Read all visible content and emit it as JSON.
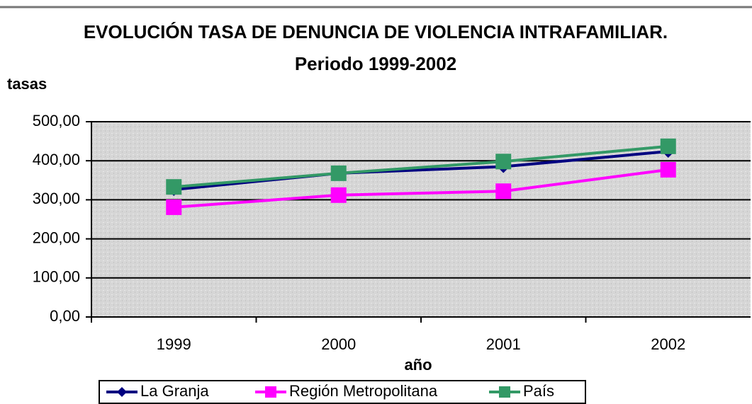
{
  "chart_data": {
    "type": "line",
    "title": "EVOLUCIÓN TASA DE DENUNCIA DE VIOLENCIA INTRAFAMILIAR.",
    "subtitle": "Periodo 1999-2002",
    "y_label": "tasas",
    "x_label": "año",
    "categories": [
      "1999",
      "2000",
      "2001",
      "2002"
    ],
    "series": [
      {
        "name": "La Granja",
        "color": "#000080",
        "marker": "diamond",
        "values": [
          326,
          368,
          385,
          424
        ]
      },
      {
        "name": "Región Metropolitana",
        "color": "#ff00ff",
        "marker": "square",
        "values": [
          281,
          312,
          322,
          377
        ]
      },
      {
        "name": "País",
        "color": "#339966",
        "marker": "square",
        "values": [
          333,
          368,
          398,
          437
        ]
      }
    ],
    "ylim": [
      0,
      500
    ],
    "yticks": [
      {
        "value": 0,
        "label": "0,00"
      },
      {
        "value": 100,
        "label": "100,00"
      },
      {
        "value": 200,
        "label": "200,00"
      },
      {
        "value": 300,
        "label": "300,00"
      },
      {
        "value": 400,
        "label": "400,00"
      },
      {
        "value": 500,
        "label": "500,00"
      }
    ],
    "grid": true,
    "legend": "bottom"
  }
}
